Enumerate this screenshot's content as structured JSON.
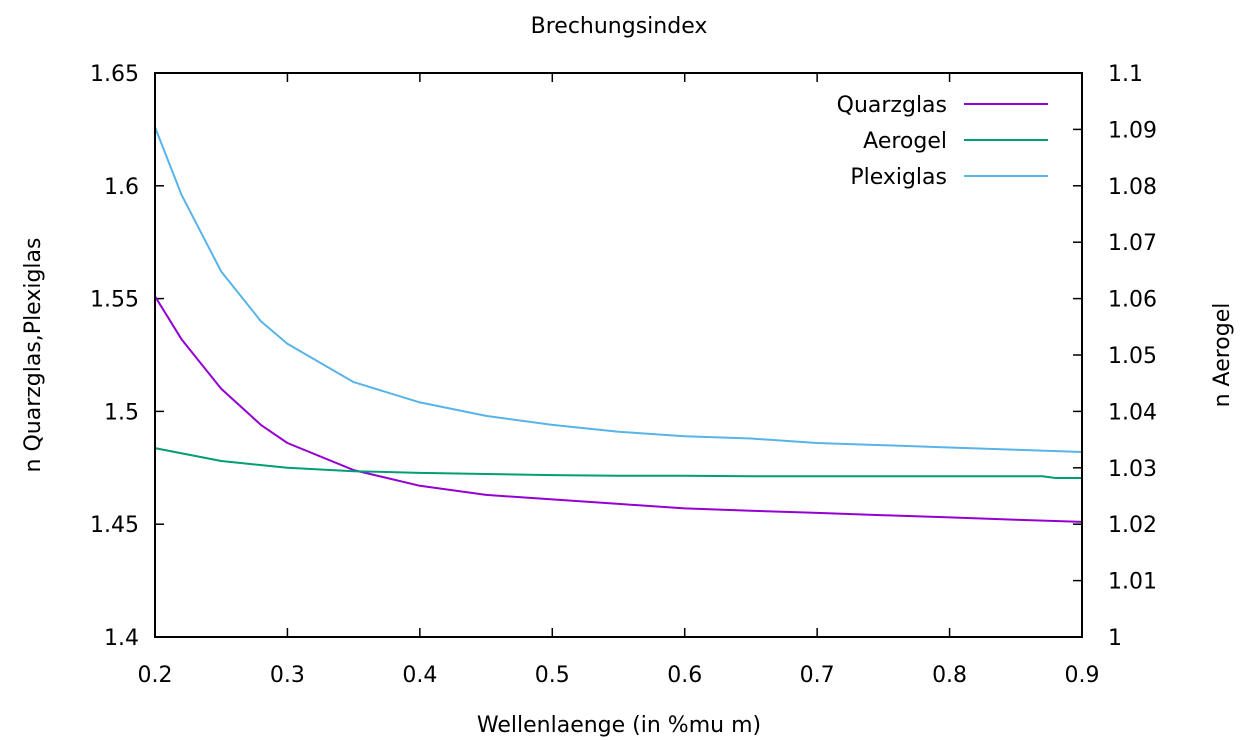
{
  "chart_data": {
    "type": "line",
    "title": "Brechungsindex",
    "xlabel": "Wellenlaenge (in %mu m)",
    "ylabel": "n Quarzglas,Plexiglas",
    "y2label": "n Aerogel",
    "xlim": [
      0.2,
      0.9
    ],
    "ylim": [
      1.4,
      1.65
    ],
    "y2lim": [
      1.0,
      1.1
    ],
    "x_ticks": [
      "0.2",
      "0.3",
      "0.4",
      "0.5",
      "0.6",
      "0.7",
      "0.8",
      "0.9"
    ],
    "y_ticks": [
      "1.4",
      "1.45",
      "1.5",
      "1.55",
      "1.6",
      "1.65"
    ],
    "y2_ticks": [
      "1",
      "1.01",
      "1.02",
      "1.03",
      "1.04",
      "1.05",
      "1.06",
      "1.07",
      "1.08",
      "1.09",
      "1.1"
    ],
    "grid": false,
    "legend_position": "top-right",
    "series": [
      {
        "name": "Quarzglas",
        "axis": "left",
        "color": "#9400d3",
        "x": [
          0.2,
          0.22,
          0.25,
          0.28,
          0.3,
          0.35,
          0.4,
          0.45,
          0.5,
          0.55,
          0.6,
          0.65,
          0.7,
          0.75,
          0.8,
          0.85,
          0.9
        ],
        "y": [
          1.551,
          1.532,
          1.51,
          1.494,
          1.486,
          1.474,
          1.467,
          1.463,
          1.461,
          1.459,
          1.457,
          1.456,
          1.455,
          1.454,
          1.453,
          1.452,
          1.451
        ]
      },
      {
        "name": "Aerogel",
        "axis": "right",
        "color": "#009e73",
        "x": [
          0.2,
          0.25,
          0.3,
          0.35,
          0.4,
          0.45,
          0.5,
          0.55,
          0.6,
          0.65,
          0.7,
          0.75,
          0.8,
          0.85,
          0.87,
          0.88,
          0.9
        ],
        "y": [
          1.0335,
          1.0312,
          1.03,
          1.0294,
          1.0291,
          1.0289,
          1.0287,
          1.0286,
          1.0286,
          1.0285,
          1.0285,
          1.0285,
          1.0285,
          1.0285,
          1.0285,
          1.0282,
          1.0282
        ]
      },
      {
        "name": "Plexiglas",
        "axis": "left",
        "color": "#56b4e9",
        "x": [
          0.2,
          0.22,
          0.25,
          0.28,
          0.3,
          0.35,
          0.4,
          0.45,
          0.5,
          0.55,
          0.6,
          0.65,
          0.7,
          0.75,
          0.8,
          0.85,
          0.9
        ],
        "y": [
          1.626,
          1.596,
          1.562,
          1.54,
          1.53,
          1.513,
          1.504,
          1.498,
          1.494,
          1.491,
          1.489,
          1.488,
          1.486,
          1.485,
          1.484,
          1.483,
          1.482
        ]
      }
    ]
  }
}
